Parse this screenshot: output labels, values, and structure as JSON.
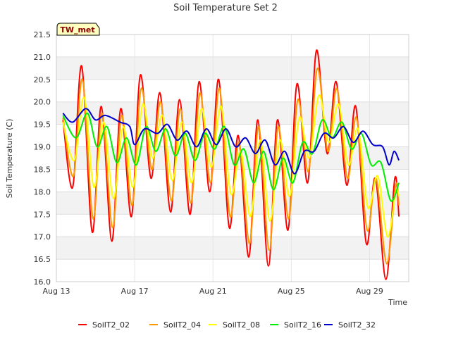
{
  "chart_data": {
    "type": "line",
    "title": "Soil Temperature Set 2",
    "xlabel": "Time",
    "ylabel": "Soil Temperature (C)",
    "site_label": "TW_met",
    "xlim": [
      "2023-08-13",
      "2023-08-31"
    ],
    "ylim": [
      16.0,
      21.5
    ],
    "yticks": [
      16.0,
      16.5,
      17.0,
      17.5,
      18.0,
      18.5,
      19.0,
      19.5,
      20.0,
      20.5,
      21.0,
      21.5
    ],
    "xticks": [
      {
        "date": "2023-08-13",
        "label": "Aug 13"
      },
      {
        "date": "2023-08-17",
        "label": "Aug 17"
      },
      {
        "date": "2023-08-21",
        "label": "Aug 21"
      },
      {
        "date": "2023-08-25",
        "label": "Aug 25"
      },
      {
        "date": "2023-08-29",
        "label": "Aug 29"
      }
    ],
    "grid": true,
    "legend": "bottom",
    "series": [
      {
        "name": "SoilT2_02",
        "color": "#ff0000",
        "points": [
          [
            "2023-08-13T08:00",
            19.6
          ],
          [
            "2023-08-13T20:00",
            18.1
          ],
          [
            "2023-08-14T07:00",
            20.8
          ],
          [
            "2023-08-14T20:00",
            17.1
          ],
          [
            "2023-08-15T07:00",
            19.9
          ],
          [
            "2023-08-15T20:00",
            16.9
          ],
          [
            "2023-08-16T07:00",
            19.85
          ],
          [
            "2023-08-16T20:00",
            17.45
          ],
          [
            "2023-08-17T07:00",
            20.6
          ],
          [
            "2023-08-17T20:00",
            18.3
          ],
          [
            "2023-08-18T07:00",
            20.2
          ],
          [
            "2023-08-18T20:00",
            17.55
          ],
          [
            "2023-08-19T07:00",
            20.05
          ],
          [
            "2023-08-19T20:00",
            17.5
          ],
          [
            "2023-08-20T07:00",
            20.45
          ],
          [
            "2023-08-20T20:00",
            18.0
          ],
          [
            "2023-08-21T07:00",
            20.5
          ],
          [
            "2023-08-21T20:00",
            17.2
          ],
          [
            "2023-08-22T07:00",
            19.25
          ],
          [
            "2023-08-22T20:00",
            16.55
          ],
          [
            "2023-08-23T07:00",
            19.6
          ],
          [
            "2023-08-23T20:00",
            16.35
          ],
          [
            "2023-08-24T07:00",
            19.6
          ],
          [
            "2023-08-24T20:00",
            17.15
          ],
          [
            "2023-08-25T07:00",
            20.4
          ],
          [
            "2023-08-25T20:00",
            18.2
          ],
          [
            "2023-08-26T07:00",
            21.15
          ],
          [
            "2023-08-26T20:00",
            18.85
          ],
          [
            "2023-08-27T07:00",
            20.45
          ],
          [
            "2023-08-27T20:00",
            18.15
          ],
          [
            "2023-08-28T07:00",
            19.9
          ],
          [
            "2023-08-28T20:00",
            16.85
          ],
          [
            "2023-08-29T07:00",
            18.3
          ],
          [
            "2023-08-29T20:00",
            16.05
          ],
          [
            "2023-08-30T07:00",
            18.3
          ],
          [
            "2023-08-30T12:00",
            17.45
          ]
        ]
      },
      {
        "name": "SoilT2_04",
        "color": "#ff9900",
        "points": [
          [
            "2023-08-13T08:00",
            19.65
          ],
          [
            "2023-08-13T21:00",
            18.35
          ],
          [
            "2023-08-14T08:00",
            20.5
          ],
          [
            "2023-08-14T21:00",
            17.4
          ],
          [
            "2023-08-15T08:00",
            19.75
          ],
          [
            "2023-08-15T21:00",
            17.2
          ],
          [
            "2023-08-16T08:00",
            19.7
          ],
          [
            "2023-08-16T21:00",
            17.7
          ],
          [
            "2023-08-17T08:00",
            20.3
          ],
          [
            "2023-08-17T21:00",
            18.5
          ],
          [
            "2023-08-18T08:00",
            20.0
          ],
          [
            "2023-08-18T21:00",
            17.8
          ],
          [
            "2023-08-19T08:00",
            19.85
          ],
          [
            "2023-08-19T21:00",
            17.75
          ],
          [
            "2023-08-20T08:00",
            20.2
          ],
          [
            "2023-08-20T21:00",
            18.2
          ],
          [
            "2023-08-21T08:00",
            20.3
          ],
          [
            "2023-08-21T21:00",
            17.45
          ],
          [
            "2023-08-22T08:00",
            19.1
          ],
          [
            "2023-08-22T21:00",
            16.85
          ],
          [
            "2023-08-23T08:00",
            19.45
          ],
          [
            "2023-08-23T21:00",
            16.7
          ],
          [
            "2023-08-24T08:00",
            19.45
          ],
          [
            "2023-08-24T21:00",
            17.4
          ],
          [
            "2023-08-25T08:00",
            20.05
          ],
          [
            "2023-08-25T21:00",
            18.45
          ],
          [
            "2023-08-26T08:00",
            20.75
          ],
          [
            "2023-08-26T21:00",
            18.9
          ],
          [
            "2023-08-27T08:00",
            20.3
          ],
          [
            "2023-08-27T21:00",
            18.3
          ],
          [
            "2023-08-28T08:00",
            19.65
          ],
          [
            "2023-08-28T21:00",
            17.15
          ],
          [
            "2023-08-29T08:00",
            18.3
          ],
          [
            "2023-08-29T21:00",
            16.4
          ],
          [
            "2023-08-30T08:00",
            18.15
          ],
          [
            "2023-08-30T12:00",
            17.7
          ]
        ]
      },
      {
        "name": "SoilT2_08",
        "color": "#ffff00",
        "points": [
          [
            "2023-08-13T08:00",
            19.55
          ],
          [
            "2023-08-13T22:00",
            18.7
          ],
          [
            "2023-08-14T10:00",
            20.1
          ],
          [
            "2023-08-14T22:00",
            18.1
          ],
          [
            "2023-08-15T10:00",
            19.55
          ],
          [
            "2023-08-15T22:00",
            17.85
          ],
          [
            "2023-08-16T10:00",
            19.45
          ],
          [
            "2023-08-16T22:00",
            18.1
          ],
          [
            "2023-08-17T10:00",
            19.95
          ],
          [
            "2023-08-17T22:00",
            18.75
          ],
          [
            "2023-08-18T10:00",
            19.7
          ],
          [
            "2023-08-18T22:00",
            18.25
          ],
          [
            "2023-08-19T10:00",
            19.55
          ],
          [
            "2023-08-19T22:00",
            18.2
          ],
          [
            "2023-08-20T10:00",
            19.85
          ],
          [
            "2023-08-20T22:00",
            18.55
          ],
          [
            "2023-08-21T10:00",
            19.9
          ],
          [
            "2023-08-21T22:00",
            17.95
          ],
          [
            "2023-08-22T10:00",
            18.9
          ],
          [
            "2023-08-22T22:00",
            17.45
          ],
          [
            "2023-08-23T10:00",
            19.15
          ],
          [
            "2023-08-23T22:00",
            17.35
          ],
          [
            "2023-08-24T10:00",
            19.15
          ],
          [
            "2023-08-24T22:00",
            17.9
          ],
          [
            "2023-08-25T10:00",
            19.65
          ],
          [
            "2023-08-25T22:00",
            18.75
          ],
          [
            "2023-08-26T10:00",
            20.15
          ],
          [
            "2023-08-26T22:00",
            19.1
          ],
          [
            "2023-08-27T10:00",
            19.95
          ],
          [
            "2023-08-27T22:00",
            18.6
          ],
          [
            "2023-08-28T10:00",
            19.4
          ],
          [
            "2023-08-28T22:00",
            17.65
          ],
          [
            "2023-08-29T10:00",
            18.35
          ],
          [
            "2023-08-29T22:00",
            17.0
          ],
          [
            "2023-08-30T08:00",
            18.0
          ],
          [
            "2023-08-30T12:00",
            17.9
          ]
        ]
      },
      {
        "name": "SoilT2_16",
        "color": "#00ee00",
        "points": [
          [
            "2023-08-13T08:00",
            19.7
          ],
          [
            "2023-08-14T00:00",
            19.2
          ],
          [
            "2023-08-14T14:00",
            19.75
          ],
          [
            "2023-08-15T02:00",
            19.0
          ],
          [
            "2023-08-15T14:00",
            19.45
          ],
          [
            "2023-08-16T02:00",
            18.65
          ],
          [
            "2023-08-16T14:00",
            19.2
          ],
          [
            "2023-08-17T02:00",
            18.6
          ],
          [
            "2023-08-17T14:00",
            19.45
          ],
          [
            "2023-08-18T02:00",
            18.9
          ],
          [
            "2023-08-18T14:00",
            19.4
          ],
          [
            "2023-08-19T02:00",
            18.8
          ],
          [
            "2023-08-19T14:00",
            19.3
          ],
          [
            "2023-08-20T02:00",
            18.7
          ],
          [
            "2023-08-20T14:00",
            19.3
          ],
          [
            "2023-08-21T02:00",
            18.95
          ],
          [
            "2023-08-21T14:00",
            19.45
          ],
          [
            "2023-08-22T02:00",
            18.6
          ],
          [
            "2023-08-22T14:00",
            18.95
          ],
          [
            "2023-08-23T02:00",
            18.2
          ],
          [
            "2023-08-23T14:00",
            18.9
          ],
          [
            "2023-08-24T02:00",
            18.05
          ],
          [
            "2023-08-24T14:00",
            18.75
          ],
          [
            "2023-08-25T02:00",
            18.2
          ],
          [
            "2023-08-25T14:00",
            19.1
          ],
          [
            "2023-08-26T02:00",
            18.85
          ],
          [
            "2023-08-26T14:00",
            19.6
          ],
          [
            "2023-08-27T02:00",
            19.2
          ],
          [
            "2023-08-27T14:00",
            19.55
          ],
          [
            "2023-08-28T02:00",
            18.95
          ],
          [
            "2023-08-28T14:00",
            19.3
          ],
          [
            "2023-08-29T02:00",
            18.6
          ],
          [
            "2023-08-29T14:00",
            18.65
          ],
          [
            "2023-08-30T02:00",
            17.8
          ],
          [
            "2023-08-30T12:00",
            18.2
          ]
        ]
      },
      {
        "name": "SoilT2_32",
        "color": "#0000cc",
        "points": [
          [
            "2023-08-13T08:00",
            19.75
          ],
          [
            "2023-08-13T20:00",
            19.55
          ],
          [
            "2023-08-14T12:00",
            19.85
          ],
          [
            "2023-08-15T00:00",
            19.6
          ],
          [
            "2023-08-15T12:00",
            19.7
          ],
          [
            "2023-08-16T06:00",
            19.55
          ],
          [
            "2023-08-16T18:00",
            19.45
          ],
          [
            "2023-08-17T00:00",
            19.05
          ],
          [
            "2023-08-17T12:00",
            19.4
          ],
          [
            "2023-08-18T04:00",
            19.3
          ],
          [
            "2023-08-18T16:00",
            19.5
          ],
          [
            "2023-08-19T04:00",
            19.15
          ],
          [
            "2023-08-19T16:00",
            19.35
          ],
          [
            "2023-08-20T04:00",
            19.0
          ],
          [
            "2023-08-20T16:00",
            19.4
          ],
          [
            "2023-08-21T04:00",
            19.05
          ],
          [
            "2023-08-21T16:00",
            19.4
          ],
          [
            "2023-08-22T04:00",
            19.0
          ],
          [
            "2023-08-22T16:00",
            19.2
          ],
          [
            "2023-08-23T04:00",
            18.85
          ],
          [
            "2023-08-23T16:00",
            19.15
          ],
          [
            "2023-08-24T04:00",
            18.6
          ],
          [
            "2023-08-24T16:00",
            18.9
          ],
          [
            "2023-08-25T04:00",
            18.4
          ],
          [
            "2023-08-25T16:00",
            18.9
          ],
          [
            "2023-08-26T04:00",
            18.9
          ],
          [
            "2023-08-26T16:00",
            19.3
          ],
          [
            "2023-08-27T04:00",
            19.2
          ],
          [
            "2023-08-27T16:00",
            19.45
          ],
          [
            "2023-08-28T04:00",
            19.1
          ],
          [
            "2023-08-28T16:00",
            19.35
          ],
          [
            "2023-08-29T04:00",
            19.05
          ],
          [
            "2023-08-29T16:00",
            19.0
          ],
          [
            "2023-08-30T00:00",
            18.6
          ],
          [
            "2023-08-30T06:00",
            18.9
          ],
          [
            "2023-08-30T12:00",
            18.7
          ]
        ]
      }
    ]
  }
}
